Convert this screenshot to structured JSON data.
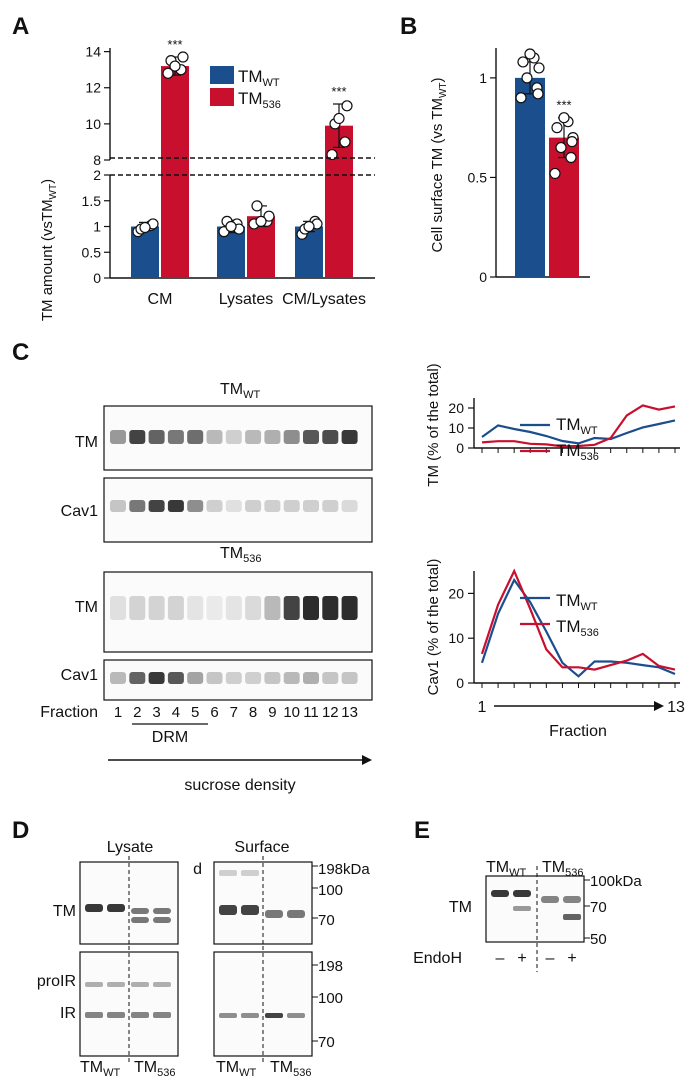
{
  "colors": {
    "wt": "#1b4e8c",
    "m536": "#c8102e",
    "marker": "#ffffff",
    "blot_bg": "#fbfbfb",
    "band": "#222222"
  },
  "panels": {
    "A": "A",
    "B": "B",
    "C": "C",
    "D": "D",
    "E": "E"
  },
  "legend": {
    "tm": "TM",
    "wt_sub": "WT",
    "m_sub": "536"
  },
  "chart_data": [
    {
      "id": "A",
      "type": "bar",
      "axis_break": true,
      "ylabel_main": "TM amount (vsTM",
      "ylabel_sub": "WT",
      "ylabel_end": ")",
      "categories": [
        "CM",
        "Lysates",
        "CM/Lysates"
      ],
      "series": [
        {
          "name": "TMWT",
          "values": [
            1.0,
            1.0,
            1.0
          ],
          "errors": [
            0.08,
            0.12,
            0.1
          ]
        },
        {
          "name": "TM536",
          "values": [
            13.2,
            1.2,
            9.9
          ],
          "errors": [
            0.5,
            0.2,
            1.2
          ]
        }
      ],
      "points": [
        [
          [
            0.9,
            1.02,
            0.95,
            1.05,
            0.98
          ],
          [
            12.8,
            13.0,
            13.5,
            13.7,
            13.2
          ]
        ],
        [
          [
            0.9,
            1.05,
            1.1,
            0.95,
            1.0
          ],
          [
            1.05,
            1.1,
            1.4,
            1.2,
            1.1
          ]
        ],
        [
          [
            0.85,
            1.1,
            0.95,
            1.05,
            1.0
          ],
          [
            8.3,
            9.0,
            10.0,
            11.0,
            10.3
          ]
        ]
      ],
      "significance": [
        "***",
        "",
        "***"
      ],
      "lower_ticks": [
        "0",
        "0.5",
        "1",
        "1.5",
        "2"
      ],
      "upper_ticks": [
        "8",
        "10",
        "12",
        "14"
      ],
      "lower_range": [
        0,
        2
      ],
      "upper_range": [
        8,
        14.2
      ],
      "legend_position": "top"
    },
    {
      "id": "B",
      "type": "bar",
      "ylabel_main": "Cell surface TM (vs TM",
      "ylabel_sub": "WT",
      "ylabel_end": ")",
      "categories": [
        "TMWT",
        "TM536"
      ],
      "values": [
        1.0,
        0.7
      ],
      "errors": [
        0.08,
        0.1
      ],
      "points": [
        [
          0.9,
          0.95,
          1.0,
          1.05,
          1.08,
          1.1,
          1.12,
          0.92
        ],
        [
          0.52,
          0.6,
          0.65,
          0.7,
          0.75,
          0.78,
          0.8,
          0.68
        ]
      ],
      "significance": [
        "",
        "***"
      ],
      "ticks": [
        "0",
        "0.5",
        "1"
      ],
      "ylim": [
        0,
        1.15
      ]
    },
    {
      "id": "C-TM",
      "type": "line",
      "ylabel": "TM (% of the total)",
      "x": [
        1,
        2,
        3,
        4,
        5,
        6,
        7,
        8,
        9,
        10,
        11,
        12,
        13
      ],
      "series": [
        {
          "name": "TMWT",
          "values": [
            5.5,
            11.3,
            9.5,
            8.0,
            6.0,
            3.5,
            2.3,
            5.0,
            4.5,
            7.5,
            10.3,
            12.0,
            13.8
          ]
        },
        {
          "name": "TM536",
          "values": [
            2.8,
            3.4,
            3.4,
            2.1,
            1.8,
            0.8,
            1.0,
            1.6,
            5.0,
            16.3,
            21.3,
            19.2,
            20.8
          ]
        }
      ],
      "ticks": [
        "0",
        "10",
        "20"
      ],
      "ylim": [
        0,
        25
      ],
      "legend_position": "top-right"
    },
    {
      "id": "C-Cav1",
      "type": "line",
      "ylabel": "Cav1 (% of the total)",
      "xlabel": "Fraction",
      "x_start_label": "1",
      "x_end_label": "13",
      "x": [
        1,
        2,
        3,
        4,
        5,
        6,
        7,
        8,
        9,
        10,
        11,
        12,
        13
      ],
      "series": [
        {
          "name": "TMWT",
          "values": [
            4.5,
            15.5,
            23.0,
            18.0,
            11.5,
            4.5,
            1.5,
            4.8,
            4.8,
            4.5,
            4.0,
            3.5,
            2.0
          ]
        },
        {
          "name": "TM536",
          "values": [
            6.5,
            17.5,
            25.0,
            16.5,
            7.5,
            3.5,
            3.5,
            3.0,
            4.0,
            5.0,
            6.5,
            3.8,
            3.0
          ]
        }
      ],
      "ticks": [
        "0",
        "10",
        "20"
      ],
      "ylim": [
        0,
        25
      ],
      "legend_position": "top-right"
    }
  ],
  "blots_c": {
    "title_main": "TM",
    "title_wt_sub": "WT",
    "title_m_sub": "536",
    "row_tm": "TM",
    "row_cav1": "Cav1",
    "fraction_label": "Fraction",
    "fractions": [
      "1",
      "2",
      "3",
      "4",
      "5",
      "6",
      "7",
      "8",
      "9",
      "10",
      "11",
      "12",
      "13"
    ],
    "drm_label": "DRM",
    "sucrose_label": "sucrose density",
    "wt_tm": [
      0.45,
      0.85,
      0.7,
      0.6,
      0.65,
      0.3,
      0.2,
      0.3,
      0.35,
      0.5,
      0.75,
      0.8,
      0.9
    ],
    "wt_cav1": [
      0.25,
      0.6,
      0.85,
      0.9,
      0.5,
      0.2,
      0.12,
      0.2,
      0.2,
      0.2,
      0.2,
      0.2,
      0.15
    ],
    "m_tm": [
      0.12,
      0.18,
      0.18,
      0.18,
      0.1,
      0.08,
      0.1,
      0.15,
      0.3,
      0.85,
      0.95,
      0.95,
      0.95
    ],
    "m_cav1": [
      0.3,
      0.7,
      0.9,
      0.75,
      0.4,
      0.25,
      0.2,
      0.2,
      0.25,
      0.3,
      0.35,
      0.25,
      0.25
    ]
  },
  "blots_d": {
    "lysate_title": "Lysate",
    "surface_title": "Surface",
    "d_label": "d",
    "row_tm": "TM",
    "row_proir": "proIR",
    "row_ir": "IR",
    "mw_top": [
      "198kDa",
      "100",
      "70"
    ],
    "mw_bottom": [
      "198",
      "100",
      "70"
    ],
    "bottom_wt": "TM",
    "bottom_wt_sub": "WT",
    "bottom_m": "TM",
    "bottom_m_sub": "536"
  },
  "blots_e": {
    "title_wt": "TM",
    "title_wt_sub": "WT",
    "title_m": "TM",
    "title_m_sub": "536",
    "row_tm": "TM",
    "mw": [
      "100kDa",
      "70",
      "50"
    ],
    "endoh_label": "EndoH",
    "endoh_signs": [
      "–",
      "+",
      "–",
      "+"
    ]
  }
}
